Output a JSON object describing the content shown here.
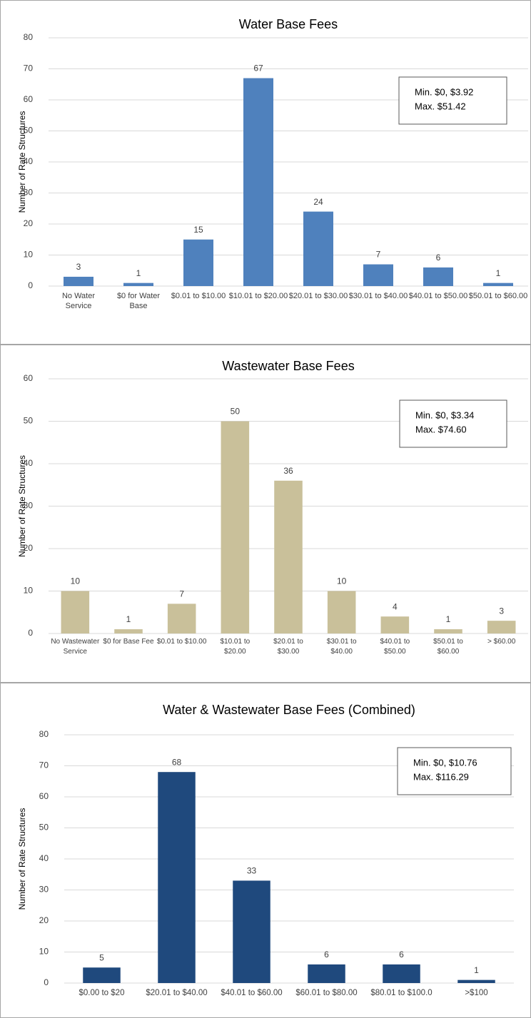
{
  "chart_data": [
    {
      "type": "bar",
      "title": "Water Base Fees",
      "y_label": "Number of Rate Structures",
      "categories": [
        "No Water Service",
        "$0 for Water Base",
        "$0.01 to $10.00",
        "$10.01 to $20.00",
        "$20.01 to $30.00",
        "$30.01 to $40.00",
        "$40.01 to $50.00",
        "$50.01 to $60.00"
      ],
      "values": [
        3,
        1,
        15,
        67,
        24,
        7,
        6,
        1
      ],
      "color": "#4f81bd",
      "ylim": [
        0,
        80
      ],
      "yticks": [
        0,
        10,
        20,
        30,
        40,
        50,
        60,
        70,
        80
      ],
      "grid": true,
      "annotation_lines": [
        "Min. $0, $3.92",
        "Max. $51.42"
      ]
    },
    {
      "type": "bar",
      "title": "Wastewater Base Fees",
      "y_label": "Number of Rate Structures",
      "categories": [
        "No Wastewater Service",
        "$0 for Base Fee",
        "$0.01 to $10.00",
        "$10.01 to $20.00",
        "$20.01 to $30.00",
        "$30.01 to $40.00",
        "$40.01 to $50.00",
        "$50.01 to $60.00",
        "> $60.00"
      ],
      "values": [
        10,
        1,
        7,
        50,
        36,
        10,
        4,
        1,
        3
      ],
      "color": "#c9c09a",
      "ylim": [
        0,
        60
      ],
      "yticks": [
        0,
        10,
        20,
        30,
        40,
        50,
        60
      ],
      "grid": true,
      "annotation_lines": [
        "Min. $0, $3.34",
        "Max. $74.60"
      ]
    },
    {
      "type": "bar",
      "title": "Water & Wastewater Base Fees (Combined)",
      "y_label": "Number of Rate Structures",
      "categories": [
        "$0.00 to $20",
        "$20.01 to $40.00",
        "$40.01 to $60.00",
        "$60.01 to $80.00",
        "$80.01 to $100.0",
        ">$100"
      ],
      "values": [
        5,
        68,
        33,
        6,
        6,
        1
      ],
      "color": "#1f497d",
      "ylim": [
        0,
        80
      ],
      "yticks": [
        0,
        10,
        20,
        30,
        40,
        50,
        60,
        70,
        80
      ],
      "grid": true,
      "annotation_lines": [
        "Min. $0, $10.76",
        "Max. $116.29"
      ]
    }
  ]
}
